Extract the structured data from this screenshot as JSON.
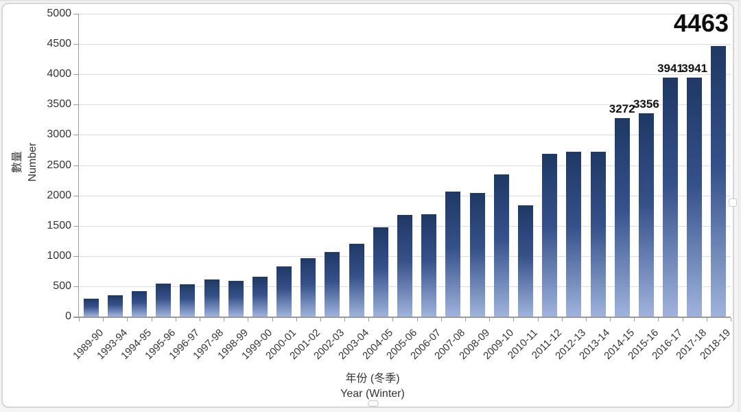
{
  "chart_data": {
    "type": "bar",
    "title": "",
    "categories": [
      "1989-90",
      "1993-94",
      "1994-95",
      "1995-96",
      "1996-97",
      "1997-98",
      "1998-99",
      "1999-00",
      "2000-01",
      "2001-02",
      "2002-03",
      "2003-04",
      "2004-05",
      "2005-06",
      "2006-07",
      "2007-08",
      "2008-09",
      "2009-10",
      "2010-11",
      "2011-12",
      "2012-13",
      "2013-14",
      "2014-15",
      "2015-16",
      "2016-17",
      "2017-18",
      "2018-19"
    ],
    "values": [
      294,
      351,
      425,
      541,
      535,
      613,
      585,
      660,
      828,
      969,
      1069,
      1206,
      1475,
      1679,
      1695,
      2065,
      2041,
      2347,
      1839,
      2693,
      2725,
      2726,
      3272,
      3356,
      3941,
      3941,
      4463
    ],
    "data_labels": [
      {
        "index": 22,
        "text": "3272",
        "emphasis": false
      },
      {
        "index": 23,
        "text": "3356",
        "emphasis": false
      },
      {
        "index": 24,
        "text": "3941",
        "emphasis": false
      },
      {
        "index": 25,
        "text": "3941",
        "emphasis": false
      },
      {
        "index": 26,
        "text": "4463",
        "emphasis": true
      }
    ],
    "xlabel": {
      "zh": "年份 (冬季)",
      "en": "Year (Winter)"
    },
    "ylabel": {
      "zh": "數量",
      "en": "Number"
    },
    "ylim": [
      0,
      5000
    ],
    "yticks": [
      0,
      500,
      1000,
      1500,
      2000,
      2500,
      3000,
      3500,
      4000,
      4500,
      5000
    ],
    "grid": "horizontal",
    "legend": "none",
    "bar_style": {
      "gradient_top": "#1F3864",
      "gradient_mid": "#35518A",
      "gradient_bottom": "#9FB3DC"
    }
  },
  "colors": {
    "gridline": "#DCDCDC",
    "axis": "#999999",
    "tick_text": "#333333",
    "data_label_text": "#111111",
    "card_border": "#D6D6D6",
    "background": "#FFFFFF"
  }
}
